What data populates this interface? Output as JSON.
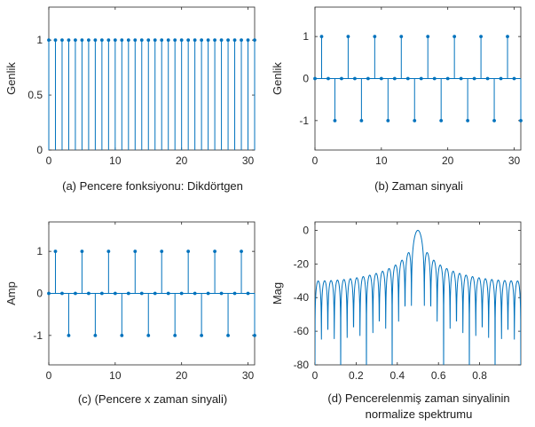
{
  "colors": {
    "stem": "#0072BD",
    "axis": "#262626",
    "background": "#ffffff"
  },
  "chart_data": [
    {
      "id": "a",
      "type": "stem",
      "caption": "(a)  Pencere fonksiyonu: Dikdörtgen",
      "ylabel": "Genlik",
      "xlim": [
        0,
        31
      ],
      "ylim": [
        0,
        1.3
      ],
      "xticks": [
        0,
        10,
        20,
        30
      ],
      "xtick_labels": [
        "0",
        "10",
        "20",
        "30"
      ],
      "yticks": [
        0,
        0.5,
        1
      ],
      "ytick_labels": [
        "0",
        "0.5",
        "1"
      ],
      "x": [
        0,
        1,
        2,
        3,
        4,
        5,
        6,
        7,
        8,
        9,
        10,
        11,
        12,
        13,
        14,
        15,
        16,
        17,
        18,
        19,
        20,
        21,
        22,
        23,
        24,
        25,
        26,
        27,
        28,
        29,
        30,
        31
      ],
      "y": [
        1,
        1,
        1,
        1,
        1,
        1,
        1,
        1,
        1,
        1,
        1,
        1,
        1,
        1,
        1,
        1,
        1,
        1,
        1,
        1,
        1,
        1,
        1,
        1,
        1,
        1,
        1,
        1,
        1,
        1,
        1,
        1
      ]
    },
    {
      "id": "b",
      "type": "stem",
      "caption": "(b) Zaman sinyali",
      "ylabel": "Genlik",
      "xlim": [
        0,
        31
      ],
      "ylim": [
        -1.7,
        1.7
      ],
      "xticks": [
        0,
        10,
        20,
        30
      ],
      "xtick_labels": [
        "0",
        "10",
        "20",
        "30"
      ],
      "yticks": [
        -1,
        0,
        1
      ],
      "ytick_labels": [
        "-1",
        "0",
        "1"
      ],
      "x": [
        0,
        1,
        2,
        3,
        4,
        5,
        6,
        7,
        8,
        9,
        10,
        11,
        12,
        13,
        14,
        15,
        16,
        17,
        18,
        19,
        20,
        21,
        22,
        23,
        24,
        25,
        26,
        27,
        28,
        29,
        30,
        31
      ],
      "y": [
        0,
        1,
        0,
        -1,
        0,
        1,
        0,
        -1,
        0,
        1,
        0,
        -1,
        0,
        1,
        0,
        -1,
        0,
        1,
        0,
        -1,
        0,
        1,
        0,
        -1,
        0,
        1,
        0,
        -1,
        0,
        1,
        0,
        -1
      ]
    },
    {
      "id": "c",
      "type": "stem",
      "caption": "(c) (Pencere x zaman sinyali)",
      "ylabel": "Amp",
      "xlim": [
        0,
        31
      ],
      "ylim": [
        -1.7,
        1.7
      ],
      "xticks": [
        0,
        10,
        20,
        30
      ],
      "xtick_labels": [
        "0",
        "10",
        "20",
        "30"
      ],
      "yticks": [
        -1,
        0,
        1
      ],
      "ytick_labels": [
        "-1",
        "0",
        "1"
      ],
      "x": [
        0,
        1,
        2,
        3,
        4,
        5,
        6,
        7,
        8,
        9,
        10,
        11,
        12,
        13,
        14,
        15,
        16,
        17,
        18,
        19,
        20,
        21,
        22,
        23,
        24,
        25,
        26,
        27,
        28,
        29,
        30,
        31
      ],
      "y": [
        0,
        1,
        0,
        -1,
        0,
        1,
        0,
        -1,
        0,
        1,
        0,
        -1,
        0,
        1,
        0,
        -1,
        0,
        1,
        0,
        -1,
        0,
        1,
        0,
        -1,
        0,
        1,
        0,
        -1,
        0,
        1,
        0,
        -1
      ]
    },
    {
      "id": "d",
      "type": "line",
      "caption_lines": [
        "(d)  Pencerelenmiş zaman sinyalinin",
        "normalize spektrumu"
      ],
      "ylabel": "Mag",
      "xlim": [
        0,
        1
      ],
      "ylim": [
        -80,
        5
      ],
      "xticks": [
        0,
        0.2,
        0.4,
        0.6,
        0.8
      ],
      "xtick_labels": [
        "0",
        "0.2",
        "0.4",
        "0.6",
        "0.8"
      ],
      "yticks": [
        0,
        -20,
        -40,
        -60,
        -80
      ],
      "ytick_labels": [
        "0",
        "-20",
        "-40",
        "-60",
        "-80"
      ],
      "curve": "normalized rectangular-window spectrum, N=32, peak at 0.5"
    }
  ]
}
